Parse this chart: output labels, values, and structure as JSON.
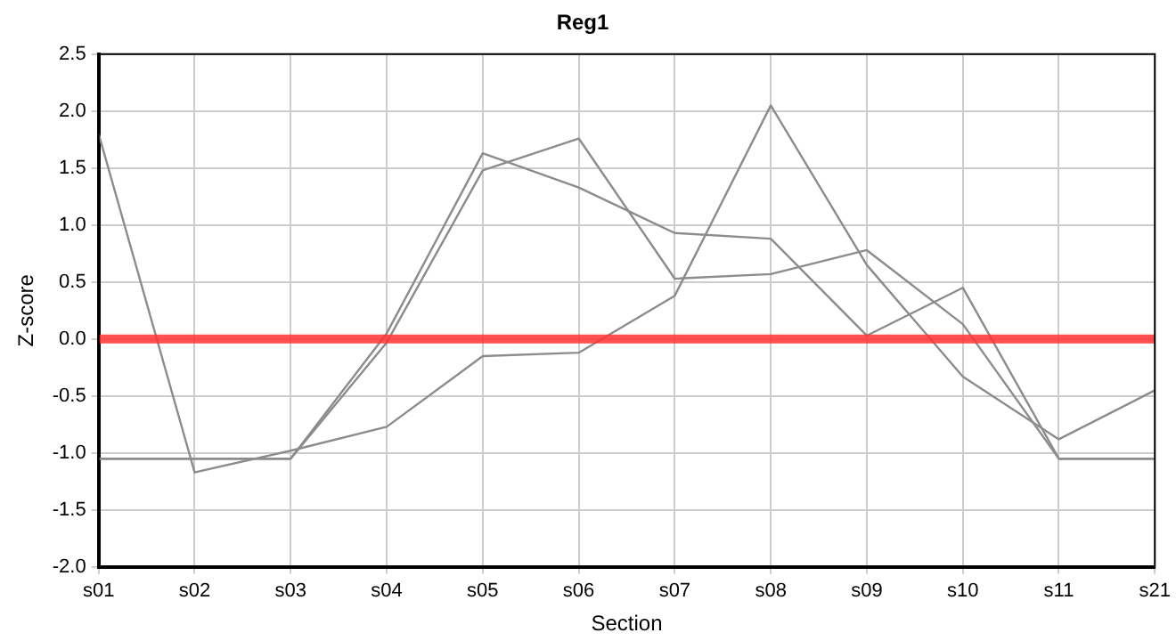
{
  "chart_data": {
    "type": "line",
    "title": "Reg1",
    "xlabel": "Section",
    "ylabel": "Z-score",
    "categories": [
      "s01",
      "s02",
      "s03",
      "s04",
      "s05",
      "s06",
      "s07",
      "s08",
      "s09",
      "s10",
      "s11",
      "s21"
    ],
    "series": [
      {
        "color": "#8c8c8c",
        "values": [
          1.8,
          -1.17,
          -0.98,
          -0.77,
          -0.15,
          -0.12,
          0.38,
          2.05,
          0.65,
          -0.33,
          -0.88,
          -0.45
        ]
      },
      {
        "color": "#8c8c8c",
        "values": [
          -1.05,
          -1.05,
          -1.05,
          0.05,
          1.63,
          1.33,
          0.93,
          0.88,
          0.03,
          0.45,
          -1.05,
          -1.05
        ]
      },
      {
        "color": "#8c8c8c",
        "values": [
          -1.05,
          -1.05,
          -1.05,
          -0.03,
          1.48,
          1.76,
          0.53,
          0.57,
          0.78,
          0.13,
          -1.05,
          -1.05
        ]
      }
    ],
    "ylim": [
      -2.0,
      2.5
    ],
    "yticks": [
      {
        "value": -2,
        "label": "-2.0"
      },
      {
        "value": -1.5,
        "label": "-1.5"
      },
      {
        "value": -1,
        "label": "-1.0"
      },
      {
        "value": -0.5,
        "label": "-0.5"
      },
      {
        "value": 0,
        "label": "0.0"
      },
      {
        "value": 0.5,
        "label": "0.5"
      },
      {
        "value": 1,
        "label": "1.0"
      },
      {
        "value": 1.5,
        "label": "1.5"
      },
      {
        "value": 2,
        "label": "2.0"
      },
      {
        "value": 2.5,
        "label": "2.5"
      }
    ],
    "ref_lines": [
      {
        "axis": "y",
        "value": 0,
        "color": "#ff3333"
      }
    ],
    "grid": true,
    "legend": false,
    "marker": "none",
    "line_style": "solid"
  }
}
